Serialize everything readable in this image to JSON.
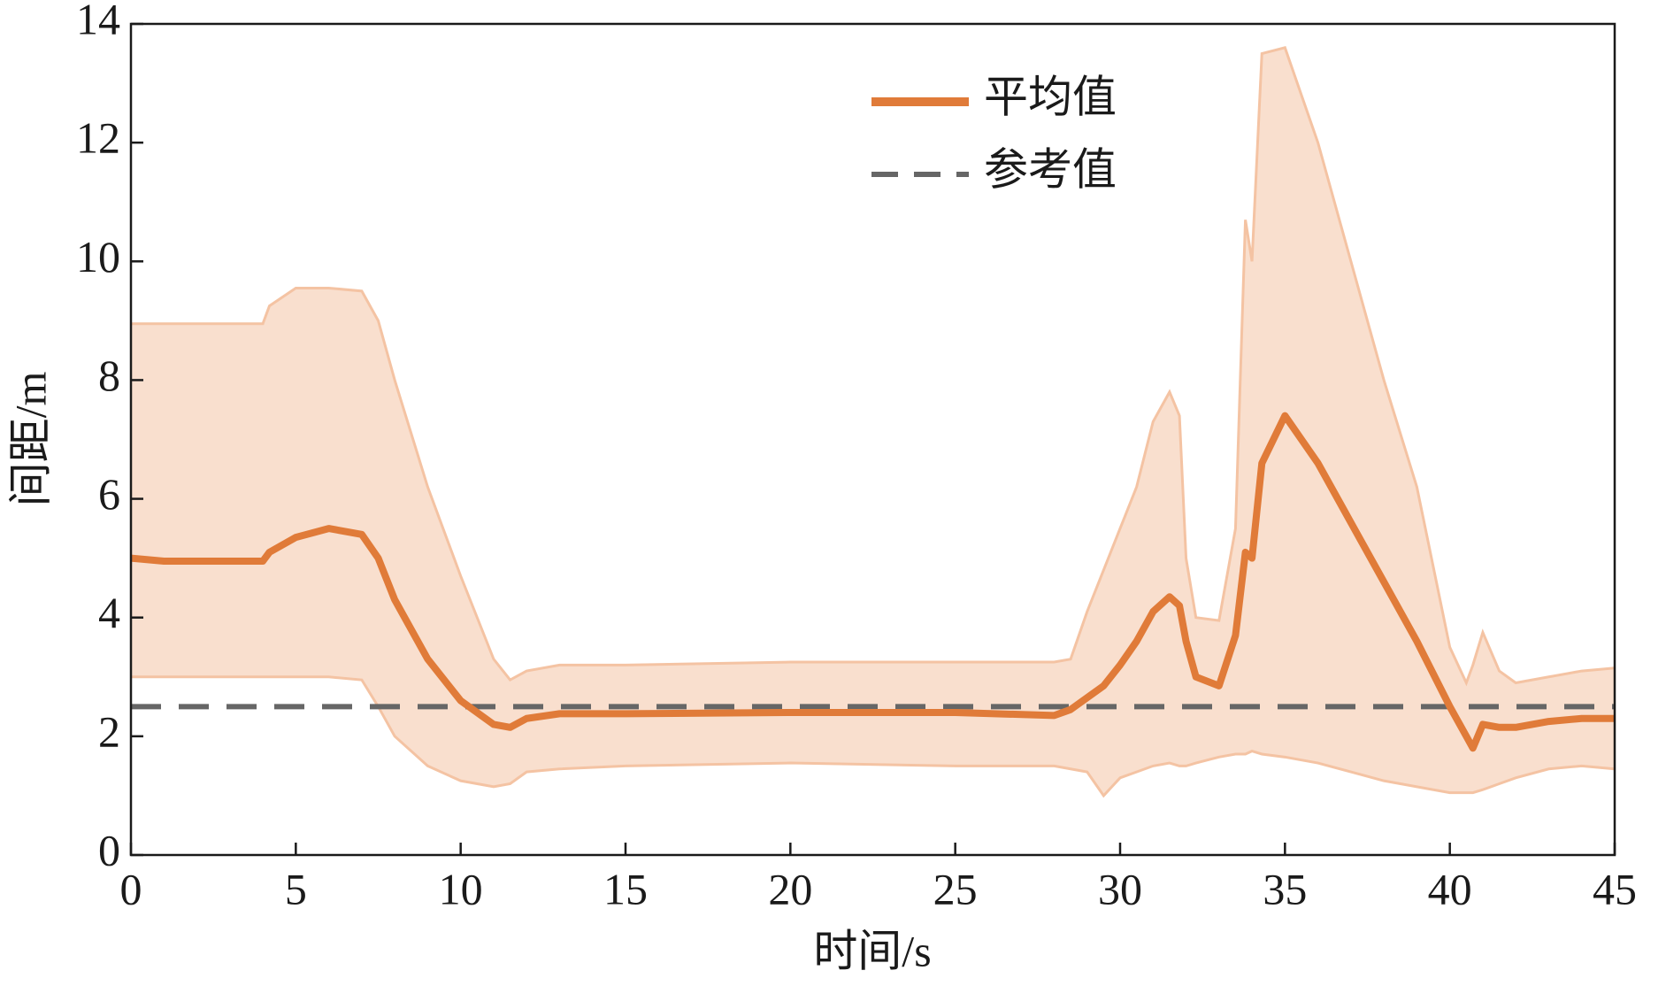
{
  "chart_data": {
    "type": "line",
    "x_label": "时间/s",
    "y_label": "间距/m",
    "xlim": [
      0,
      45
    ],
    "ylim": [
      0,
      14
    ],
    "xticks": [
      0,
      5,
      10,
      15,
      20,
      25,
      30,
      35,
      40,
      45
    ],
    "yticks": [
      0,
      2,
      4,
      6,
      8,
      10,
      12,
      14
    ],
    "legend_position": "upper center",
    "x": [
      0,
      1,
      2,
      3,
      4,
      4.2,
      5,
      6,
      7,
      7.5,
      8,
      9,
      10,
      11,
      11.5,
      12,
      13,
      15,
      20,
      25,
      28,
      28.5,
      29,
      29.5,
      30,
      30.5,
      31,
      31.5,
      31.8,
      32,
      32.3,
      33,
      33.5,
      33.8,
      34,
      34.3,
      35,
      36,
      37,
      38,
      39,
      40,
      40.5,
      40.7,
      41,
      41.5,
      42,
      43,
      44,
      45
    ],
    "series": [
      {
        "name": "平均值",
        "color": "#e07b39",
        "values": [
          5.0,
          4.95,
          4.95,
          4.95,
          4.95,
          5.1,
          5.35,
          5.5,
          5.4,
          5.0,
          4.3,
          3.3,
          2.6,
          2.2,
          2.15,
          2.3,
          2.38,
          2.38,
          2.4,
          2.4,
          2.35,
          2.45,
          2.65,
          2.85,
          3.2,
          3.6,
          4.1,
          4.35,
          4.2,
          3.6,
          3.0,
          2.85,
          3.7,
          5.1,
          5.0,
          6.6,
          7.4,
          6.6,
          5.6,
          4.6,
          3.6,
          2.5,
          2.0,
          1.8,
          2.2,
          2.15,
          2.15,
          2.25,
          2.3,
          2.3
        ]
      }
    ],
    "band": {
      "color": "#f9dfce",
      "edge_color": "#f4c3a3",
      "upper": [
        8.95,
        8.95,
        8.95,
        8.95,
        8.95,
        9.25,
        9.55,
        9.55,
        9.5,
        9.0,
        8.0,
        6.2,
        4.7,
        3.3,
        2.95,
        3.1,
        3.2,
        3.2,
        3.25,
        3.25,
        3.25,
        3.3,
        4.1,
        4.8,
        5.5,
        6.2,
        7.3,
        7.8,
        7.4,
        5.0,
        4.0,
        3.95,
        5.5,
        10.7,
        10.0,
        13.5,
        13.6,
        12.0,
        10.0,
        8.0,
        6.2,
        3.5,
        2.9,
        3.2,
        3.75,
        3.1,
        2.9,
        3.0,
        3.1,
        3.15
      ],
      "lower": [
        3.0,
        3.0,
        3.0,
        3.0,
        3.0,
        3.0,
        3.0,
        3.0,
        2.95,
        2.5,
        2.0,
        1.5,
        1.25,
        1.15,
        1.2,
        1.4,
        1.45,
        1.5,
        1.55,
        1.5,
        1.5,
        1.45,
        1.4,
        1.0,
        1.3,
        1.4,
        1.5,
        1.55,
        1.5,
        1.5,
        1.55,
        1.65,
        1.7,
        1.7,
        1.75,
        1.7,
        1.65,
        1.55,
        1.4,
        1.25,
        1.15,
        1.05,
        1.05,
        1.05,
        1.1,
        1.2,
        1.3,
        1.45,
        1.5,
        1.45
      ]
    },
    "reference_line": {
      "name": "参考值",
      "value": 2.5,
      "color": "#666666"
    }
  }
}
